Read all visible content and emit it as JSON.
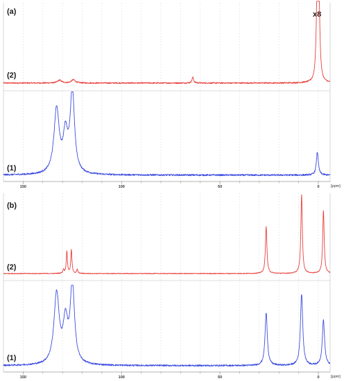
{
  "chart_data": [
    {
      "type": "line",
      "panel": "(a)",
      "xlabel_unit": "[ppm]",
      "x_reversed": true,
      "xlim": [
        160,
        -6
      ],
      "ticks": [
        "150",
        "100",
        "50",
        "0"
      ],
      "tick_values": [
        150,
        100,
        50,
        0
      ],
      "grid": true,
      "series": [
        {
          "label": "(2)",
          "color": "#e8403c",
          "annotation": "x8",
          "baseline": 0.01,
          "noise": 0.008,
          "peaks": [
            {
              "center": 0.6,
              "height": 1.0,
              "width": 0.55
            },
            {
              "center": -0.3,
              "height": 1.0,
              "width": 0.55
            },
            {
              "center": 131.5,
              "height": 0.035,
              "width": 1.2
            },
            {
              "center": 124.5,
              "height": 0.04,
              "width": 1.2
            },
            {
              "center": 63.8,
              "height": 0.07,
              "width": 0.5
            }
          ]
        },
        {
          "label": "(1)",
          "color": "#3d4de0",
          "baseline": 0.01,
          "noise": 0.01,
          "peaks": [
            {
              "center": 133.0,
              "height": 0.78,
              "width": 1.6
            },
            {
              "center": 128.5,
              "height": 0.45,
              "width": 1.4
            },
            {
              "center": 125.0,
              "height": 1.0,
              "width": 1.3
            },
            {
              "center": 0.5,
              "height": 0.28,
              "width": 0.6
            }
          ]
        }
      ]
    },
    {
      "type": "line",
      "panel": "(b)",
      "xlabel_unit": "[ppm]",
      "x_reversed": true,
      "xlim": [
        160,
        -6
      ],
      "ticks": [
        "150",
        "100",
        "50",
        "0"
      ],
      "tick_values": [
        150,
        100,
        50,
        0
      ],
      "grid": true,
      "series": [
        {
          "label": "(2)",
          "color": "#e8403c",
          "baseline": 0.01,
          "noise": 0.005,
          "peaks": [
            {
              "center": 129.5,
              "height": 0.05,
              "width": 0.35
            },
            {
              "center": 127.8,
              "height": 0.28,
              "width": 0.35
            },
            {
              "center": 125.5,
              "height": 0.3,
              "width": 0.35
            },
            {
              "center": 122.5,
              "height": 0.05,
              "width": 0.35
            },
            {
              "center": 26.5,
              "height": 0.6,
              "width": 0.45
            },
            {
              "center": 8.5,
              "height": 1.0,
              "width": 0.45
            },
            {
              "center": -2.6,
              "height": 0.8,
              "width": 0.45
            }
          ]
        },
        {
          "label": "(1)",
          "color": "#3d4de0",
          "baseline": 0.01,
          "noise": 0.01,
          "peaks": [
            {
              "center": 133.0,
              "height": 0.88,
              "width": 1.6
            },
            {
              "center": 128.5,
              "height": 0.5,
              "width": 1.4
            },
            {
              "center": 125.0,
              "height": 1.0,
              "width": 1.3
            },
            {
              "center": 26.5,
              "height": 0.66,
              "width": 0.7
            },
            {
              "center": 8.5,
              "height": 0.9,
              "width": 0.7
            },
            {
              "center": -2.6,
              "height": 0.57,
              "width": 0.7
            }
          ]
        }
      ]
    }
  ]
}
